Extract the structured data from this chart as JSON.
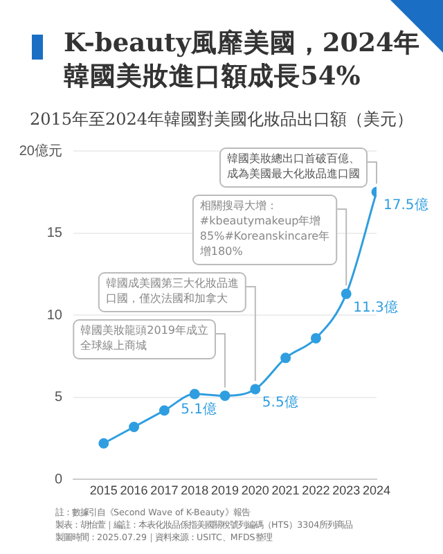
{
  "chart_data": {
    "type": "line",
    "title": "K-beauty風靡美國，2024年韓國美妝進口額成長54%",
    "subtitle": "2015年至2024年韓國對美國化妝品出口額（美元）",
    "x": [
      2015,
      2016,
      2017,
      2018,
      2019,
      2020,
      2021,
      2022,
      2023,
      2024
    ],
    "series": [
      {
        "color": "#2f9ee0",
        "values": [
          2.2,
          3.2,
          4.2,
          5.2,
          5.1,
          5.5,
          7.4,
          8.6,
          11.3,
          17.5
        ],
        "value_labels": [
          null,
          null,
          null,
          null,
          "5.1億",
          "5.5億",
          null,
          null,
          "11.3億",
          "17.5億"
        ]
      }
    ],
    "xlim": [
      2014,
      2024
    ],
    "xticks": [
      2015,
      2016,
      2017,
      2018,
      2019,
      2020,
      2021,
      2022,
      2023,
      2024
    ],
    "ylim": [
      0,
      20
    ],
    "yticks": [
      0,
      5,
      10,
      15,
      {
        "value": 20,
        "label": "20億元"
      }
    ],
    "grid": "y",
    "marker": "circle",
    "line_style": "solid",
    "legend": false,
    "annotations": [
      {
        "text": "韓國美妝龍頭2019年成立全球線上商城",
        "x": 2019,
        "y": 5.1
      },
      {
        "text": "韓國成美國第三大化妝品進口國，僅次法國和加拿大",
        "x": 2020,
        "y": 5.5
      },
      {
        "text": "相關搜尋大增：#kbeautymakeup年增85%#Koreanskincare年增180%",
        "x": 2023,
        "y": 11.3
      },
      {
        "text": "韓國美妝總出口首破百億、成為美國最大化妝品進口國",
        "x": 2024,
        "y": 17.5
      },
      "註：數據引自《Second Wave of K-Beauty》報告",
      "製表：胡怡萱｜編註：本表化妝品係指美國關稅號列編碼（HTS）3304所列商品",
      "製圖時間：2025.07.29｜資料來源：USITC、MFDS整理"
    ]
  }
}
